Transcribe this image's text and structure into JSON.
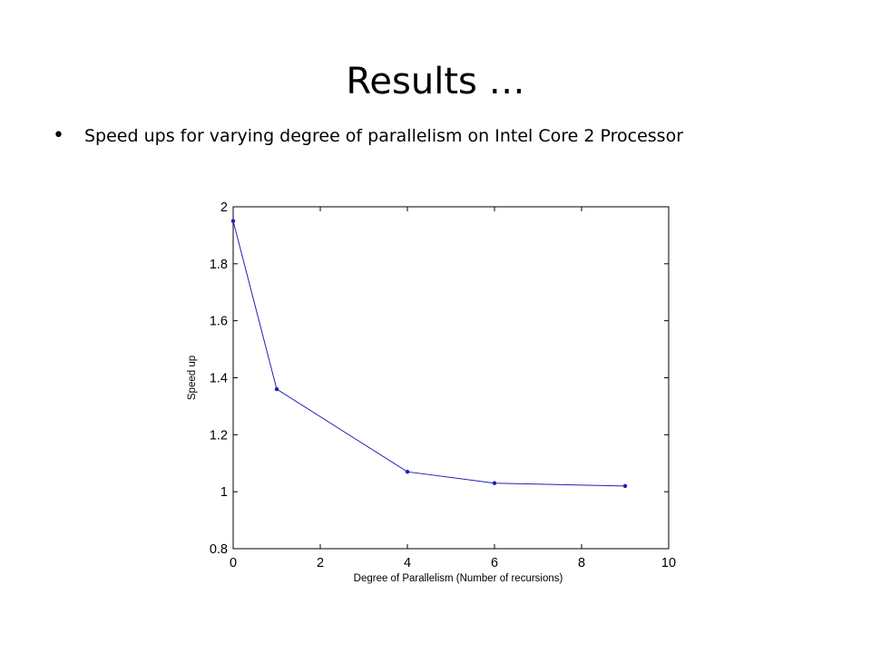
{
  "slide": {
    "title": "Results …",
    "bullet": "Speed ups for varying degree of parallelism on Intel Core 2 Processor"
  },
  "colors": {
    "series_line": "#2020b8",
    "axis": "#000000",
    "background": "#ffffff"
  },
  "chart_data": {
    "type": "line",
    "xlabel": "Degree of Parallelism (Number of recursions)",
    "ylabel": "Speed up",
    "xlim": [
      0,
      10
    ],
    "ylim": [
      0.8,
      2
    ],
    "xticks": [
      0,
      2,
      4,
      6,
      8,
      10
    ],
    "yticks": [
      0.8,
      1,
      1.2,
      1.4,
      1.6,
      1.8,
      2
    ],
    "xtick_labels": [
      "0",
      "2",
      "4",
      "6",
      "8",
      "10"
    ],
    "ytick_labels": [
      "0.8",
      "1",
      "1.2",
      "1.4",
      "1.6",
      "1.8",
      "2"
    ],
    "grid": false,
    "series": [
      {
        "x": [
          0,
          1,
          4,
          6,
          9
        ],
        "y": [
          1.95,
          1.36,
          1.07,
          1.03,
          1.02
        ],
        "marker": "dot"
      }
    ]
  }
}
